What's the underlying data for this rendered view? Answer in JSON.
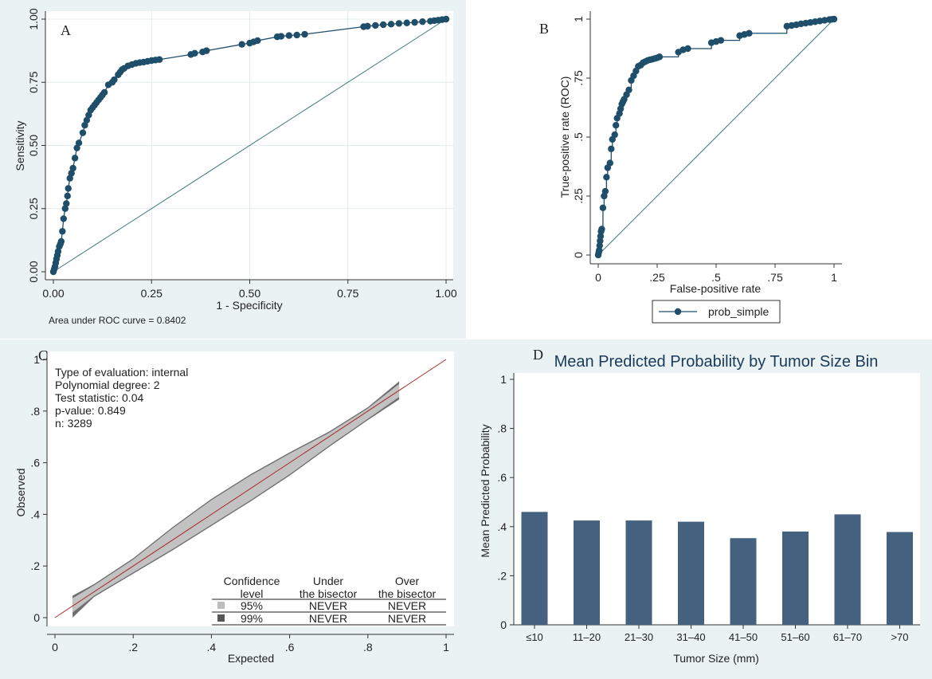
{
  "panels": {
    "a": {
      "letter": "A",
      "auc_text": "Area under ROC curve = 0.8402"
    },
    "b": {
      "letter": "B",
      "legend": "prob_simple"
    },
    "c": {
      "letter": "C"
    },
    "d": {
      "letter": "D"
    }
  },
  "chart_data": [
    {
      "type": "line",
      "panel": "A",
      "title": "",
      "xlabel": "1 - Specificity",
      "ylabel": "Sensitivity",
      "xlim": [
        0,
        1
      ],
      "ylim": [
        0,
        1
      ],
      "xticks": [
        "0.00",
        "0.25",
        "0.50",
        "0.75",
        "1.00"
      ],
      "yticks": [
        "0.00",
        "0.25",
        "0.50",
        "0.75",
        "1.00"
      ],
      "grid": true,
      "annotation": "Area under ROC curve = 0.8402",
      "series": [
        {
          "x": [
            0,
            0.002,
            0.004,
            0.006,
            0.008,
            0.01,
            0.012,
            0.015,
            0.018,
            0.02,
            0.023,
            0.026,
            0.03,
            0.033,
            0.036,
            0.038,
            0.042,
            0.046,
            0.05,
            0.055,
            0.06,
            0.065,
            0.075,
            0.08,
            0.085,
            0.09,
            0.095,
            0.1,
            0.105,
            0.11,
            0.115,
            0.12,
            0.125,
            0.13,
            0.14,
            0.15,
            0.155,
            0.165,
            0.17,
            0.175,
            0.18,
            0.19,
            0.2,
            0.21,
            0.22,
            0.23,
            0.24,
            0.25,
            0.26,
            0.27,
            0.35,
            0.36,
            0.38,
            0.39,
            0.48,
            0.5,
            0.51,
            0.52,
            0.57,
            0.58,
            0.6,
            0.62,
            0.64,
            0.79,
            0.8,
            0.82,
            0.84,
            0.86,
            0.88,
            0.9,
            0.92,
            0.94,
            0.96,
            0.97,
            0.98,
            0.99,
            1.0
          ],
          "y": [
            0,
            0.01,
            0.02,
            0.035,
            0.05,
            0.065,
            0.08,
            0.1,
            0.11,
            0.12,
            0.16,
            0.21,
            0.25,
            0.27,
            0.3,
            0.33,
            0.37,
            0.39,
            0.41,
            0.45,
            0.49,
            0.51,
            0.55,
            0.58,
            0.6,
            0.62,
            0.64,
            0.65,
            0.66,
            0.67,
            0.68,
            0.69,
            0.7,
            0.71,
            0.74,
            0.75,
            0.76,
            0.78,
            0.79,
            0.8,
            0.805,
            0.815,
            0.82,
            0.825,
            0.828,
            0.83,
            0.833,
            0.836,
            0.838,
            0.84,
            0.86,
            0.865,
            0.87,
            0.875,
            0.9,
            0.905,
            0.91,
            0.915,
            0.93,
            0.932,
            0.935,
            0.937,
            0.94,
            0.97,
            0.972,
            0.975,
            0.978,
            0.98,
            0.983,
            0.985,
            0.987,
            0.99,
            0.992,
            0.994,
            0.996,
            0.998,
            1.0
          ]
        },
        {
          "x": [
            0,
            1
          ],
          "y": [
            0,
            1
          ]
        }
      ]
    },
    {
      "type": "line",
      "panel": "B",
      "title": "",
      "xlabel": "False-positive rate",
      "ylabel": "True-positive rate (ROC)",
      "xlim": [
        0,
        1
      ],
      "ylim": [
        0,
        1
      ],
      "xticks": [
        "0",
        ".25",
        ".5",
        ".75",
        "1"
      ],
      "yticks": [
        "0",
        ".25",
        ".5",
        ".75",
        "1"
      ],
      "legend_position": "bottom",
      "series": [
        {
          "name": "prob_simple",
          "x": [
            0,
            0.002,
            0.004,
            0.006,
            0.008,
            0.01,
            0.012,
            0.015,
            0.02,
            0.025,
            0.03,
            0.035,
            0.04,
            0.05,
            0.055,
            0.06,
            0.07,
            0.075,
            0.08,
            0.09,
            0.095,
            0.1,
            0.105,
            0.11,
            0.12,
            0.13,
            0.14,
            0.15,
            0.16,
            0.17,
            0.18,
            0.19,
            0.2,
            0.21,
            0.22,
            0.23,
            0.24,
            0.25,
            0.26,
            0.34,
            0.36,
            0.38,
            0.48,
            0.5,
            0.52,
            0.6,
            0.62,
            0.64,
            0.8,
            0.82,
            0.84,
            0.86,
            0.88,
            0.9,
            0.92,
            0.94,
            0.96,
            0.98,
            0.99,
            1.0
          ],
          "y": [
            0,
            0.01,
            0.02,
            0.04,
            0.06,
            0.08,
            0.1,
            0.11,
            0.2,
            0.25,
            0.27,
            0.33,
            0.37,
            0.39,
            0.45,
            0.49,
            0.51,
            0.55,
            0.58,
            0.6,
            0.62,
            0.64,
            0.65,
            0.66,
            0.68,
            0.7,
            0.74,
            0.76,
            0.78,
            0.8,
            0.805,
            0.815,
            0.82,
            0.825,
            0.828,
            0.83,
            0.833,
            0.836,
            0.84,
            0.86,
            0.87,
            0.875,
            0.9,
            0.905,
            0.91,
            0.93,
            0.935,
            0.94,
            0.97,
            0.973,
            0.976,
            0.98,
            0.983,
            0.986,
            0.989,
            0.992,
            0.995,
            0.998,
            0.999,
            1.0
          ]
        },
        {
          "x": [
            0,
            1
          ],
          "y": [
            0,
            1
          ]
        }
      ]
    },
    {
      "type": "line",
      "panel": "C",
      "title": "",
      "xlabel": "Expected",
      "ylabel": "Observed",
      "xlim": [
        0,
        1
      ],
      "ylim": [
        0,
        1
      ],
      "xticks": [
        "0",
        ".2",
        ".4",
        ".6",
        ".8",
        "1"
      ],
      "yticks": [
        "0",
        ".2",
        ".4",
        ".6",
        ".8",
        "1"
      ],
      "info_lines": [
        "Type of evaluation: internal",
        "Polynomial degree: 2",
        "Test statistic: 0.04",
        "p-value: 0.849",
        "n: 3289"
      ],
      "series": [
        {
          "x": [
            0,
            1
          ],
          "y": [
            0,
            1
          ]
        }
      ],
      "band_99": {
        "x": [
          0.045,
          0.1,
          0.2,
          0.3,
          0.4,
          0.5,
          0.6,
          0.7,
          0.8,
          0.88
        ],
        "upper": [
          0.085,
          0.13,
          0.23,
          0.35,
          0.46,
          0.555,
          0.64,
          0.72,
          0.815,
          0.915
        ],
        "lower": [
          0.0,
          0.08,
          0.17,
          0.26,
          0.355,
          0.45,
          0.55,
          0.66,
          0.765,
          0.845
        ]
      },
      "band_95": {
        "x": [
          0.045,
          0.1,
          0.2,
          0.3,
          0.4,
          0.5,
          0.6,
          0.7,
          0.8,
          0.88
        ],
        "upper": [
          0.075,
          0.125,
          0.225,
          0.345,
          0.455,
          0.55,
          0.635,
          0.715,
          0.81,
          0.905
        ],
        "lower": [
          0.02,
          0.085,
          0.175,
          0.265,
          0.36,
          0.455,
          0.555,
          0.665,
          0.77,
          0.855
        ]
      },
      "conf_table": {
        "headers": [
          [
            "Confidence",
            "level"
          ],
          [
            "Under",
            "the bisector"
          ],
          [
            "Over",
            "the bisector"
          ]
        ],
        "rows": [
          {
            "swatch": "#bdbdbd",
            "level": "95%",
            "under": "NEVER",
            "over": "NEVER"
          },
          {
            "swatch": "#555555",
            "level": "99%",
            "under": "NEVER",
            "over": "NEVER"
          }
        ]
      }
    },
    {
      "type": "bar",
      "panel": "D",
      "title": "Mean Predicted Probability by Tumor Size Bin",
      "xlabel": "Tumor Size (mm)",
      "ylabel": "Mean Predicted Probability",
      "ylim": [
        0,
        1
      ],
      "yticks": [
        "0",
        ".2",
        ".4",
        ".6",
        ".8",
        "1"
      ],
      "categories": [
        "≤10",
        "11–20",
        "21–30",
        "31–40",
        "41–50",
        "51–60",
        "61–70",
        ">70"
      ],
      "values": [
        0.46,
        0.425,
        0.425,
        0.42,
        0.353,
        0.38,
        0.45,
        0.378
      ],
      "bar_color": "#44627f"
    }
  ]
}
